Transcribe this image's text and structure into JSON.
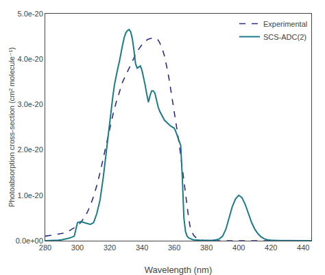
{
  "chart_data": {
    "type": "line",
    "xlabel": "Wavelength (nm)",
    "ylabel": "Photoabsorption cross-section (cm² molecule⁻¹)",
    "xlim": [
      280,
      445
    ],
    "ylim": [
      0,
      5e-20
    ],
    "xticks": [
      280,
      300,
      320,
      340,
      360,
      380,
      400,
      420,
      440
    ],
    "yticks": [
      {
        "value": 0.0,
        "label": "0.0e+00"
      },
      {
        "value": 1e-20,
        "label": "1.0e-20"
      },
      {
        "value": 2e-20,
        "label": "2.0e-20"
      },
      {
        "value": 3e-20,
        "label": "3.0e-20"
      },
      {
        "value": 4e-20,
        "label": "4.0e-20"
      },
      {
        "value": 5e-20,
        "label": "5.0e-20"
      }
    ],
    "grid": false,
    "legend": "upper right",
    "series": [
      {
        "name": "Experimental",
        "color": "#2b2b8f",
        "line_style": "dashed",
        "x": [
          280,
          282,
          284,
          286,
          288,
          290,
          292,
          294,
          296,
          298,
          300,
          302,
          304,
          306,
          308,
          310,
          312,
          314,
          316,
          318,
          320,
          322,
          324,
          326,
          328,
          330,
          332,
          334,
          336,
          338,
          340,
          342,
          344,
          346,
          347,
          348,
          349,
          350,
          351,
          352,
          353,
          354,
          355,
          356,
          357,
          358,
          359,
          360,
          361,
          362,
          363,
          364,
          365,
          366,
          367,
          368,
          369,
          370,
          372,
          374,
          376,
          378,
          380,
          382,
          384,
          386,
          388,
          390,
          395,
          400,
          405,
          410,
          415,
          420,
          425,
          430,
          435,
          440,
          445
        ],
        "values": [
          1e-21,
          1.1e-21,
          1.2e-21,
          1.3e-21,
          1.4e-21,
          1.5e-21,
          1.7e-21,
          2e-21,
          2.4e-21,
          2.8e-21,
          3.3e-21,
          4e-21,
          5e-21,
          6.2e-21,
          7.8e-21,
          9.8e-21,
          1.22e-20,
          1.5e-20,
          1.82e-20,
          2.15e-20,
          2.48e-20,
          2.78e-20,
          3.05e-20,
          3.28e-20,
          3.5e-20,
          3.65e-20,
          3.8e-20,
          3.95e-20,
          4.1e-20,
          4.22e-20,
          4.32e-20,
          4.4e-20,
          4.44e-20,
          4.46e-20,
          4.47e-20,
          4.47e-20,
          4.45e-20,
          4.42e-20,
          4.36e-20,
          4.28e-20,
          4.18e-20,
          4.06e-20,
          3.9e-20,
          3.72e-20,
          3.52e-20,
          3.3e-20,
          3.1e-20,
          2.88e-20,
          2.65e-20,
          2.4e-20,
          2.15e-20,
          1.88e-20,
          1.6e-20,
          1.3e-20,
          1e-20,
          7.2e-21,
          4.8e-21,
          2.8e-21,
          1.2e-21,
          5e-22,
          2e-22,
          1e-22,
          5e-23,
          3e-23,
          2e-23,
          1e-23,
          1e-23,
          0.0,
          0.0,
          0.0,
          0.0,
          0.0,
          0.0,
          0.0,
          0.0,
          0.0,
          0.0,
          0.0,
          0.0
        ]
      },
      {
        "name": "SCS-ADC(2)",
        "color": "#1a7a8a",
        "line_style": "solid",
        "x": [
          280,
          282,
          284,
          286,
          288,
          290,
          292,
          294,
          296,
          298,
          300,
          302,
          304,
          306,
          308,
          310,
          312,
          314,
          316,
          318,
          320,
          322,
          323,
          324,
          325,
          326,
          327,
          328,
          329,
          330,
          331,
          332,
          333,
          334,
          335,
          336,
          337,
          338,
          339,
          340,
          341,
          342,
          343,
          344,
          345,
          346,
          347,
          348,
          349,
          350,
          351,
          352,
          353,
          354,
          355,
          356,
          357,
          358,
          359,
          360,
          361,
          362,
          363,
          364,
          365,
          366,
          367,
          368,
          369,
          370,
          371,
          372,
          374,
          376,
          378,
          380,
          382,
          384,
          386,
          388,
          390,
          392,
          394,
          396,
          398,
          400,
          402,
          404,
          406,
          408,
          410,
          412,
          414,
          416,
          418,
          420,
          425,
          430,
          435,
          440,
          445
        ],
        "values": [
          0.0,
          0.0,
          0.0,
          1e-22,
          1e-22,
          2e-22,
          3e-22,
          5e-22,
          7e-22,
          1e-21,
          4e-21,
          4.2e-21,
          4e-21,
          3.8e-21,
          3.6e-21,
          4e-21,
          6e-21,
          9e-21,
          1.4e-20,
          2e-20,
          2.65e-20,
          3.2e-20,
          3.45e-20,
          3.65e-20,
          3.8e-20,
          3.95e-20,
          4.15e-20,
          4.32e-20,
          4.48e-20,
          4.58e-20,
          4.63e-20,
          4.65e-20,
          4.6e-20,
          4.45e-20,
          4.2e-20,
          3.9e-20,
          3.8e-20,
          3.82e-20,
          3.85e-20,
          3.75e-20,
          3.6e-20,
          3.42e-20,
          3.22e-20,
          3.05e-20,
          3.2e-20,
          3.3e-20,
          3.3e-20,
          3.25e-20,
          3.1e-20,
          2.95e-20,
          2.85e-20,
          2.78e-20,
          2.72e-20,
          2.65e-20,
          2.62e-20,
          2.58e-20,
          2.55e-20,
          2.52e-20,
          2.5e-20,
          2.48e-20,
          2.4e-20,
          2.3e-20,
          2.2e-20,
          2.1e-20,
          1.4e-20,
          5e-21,
          2e-21,
          1e-21,
          6e-22,
          4e-22,
          3e-22,
          2e-22,
          1e-22,
          1e-22,
          5e-23,
          5e-23,
          5e-23,
          1e-22,
          2e-22,
          4e-22,
          1e-21,
          2.5e-21,
          5e-21,
          7.5e-21,
          9.2e-21,
          1e-20,
          9.5e-21,
          8e-21,
          6e-21,
          4e-21,
          2.5e-21,
          1.5e-21,
          8e-22,
          4e-22,
          2e-22,
          1e-22,
          5e-23,
          2e-23,
          1e-23,
          1e-23,
          0.0
        ]
      }
    ]
  }
}
